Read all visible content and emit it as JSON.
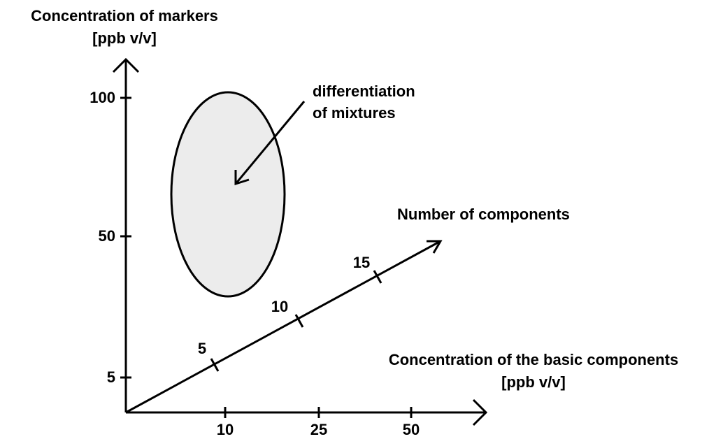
{
  "y_axis": {
    "label_lines": [
      "Concentration of markers",
      "[ppb v/v]"
    ],
    "ticks": [
      100,
      50,
      5
    ]
  },
  "x_axis": {
    "label_lines": [
      "Concentration of the basic components",
      "[ppb v/v]"
    ],
    "ticks": [
      10,
      25,
      50
    ]
  },
  "diagonal_axis": {
    "label": "Number of components",
    "ticks": [
      5,
      10,
      15
    ]
  },
  "annotation": {
    "lines": [
      "differentiation",
      "of mixtures"
    ]
  }
}
